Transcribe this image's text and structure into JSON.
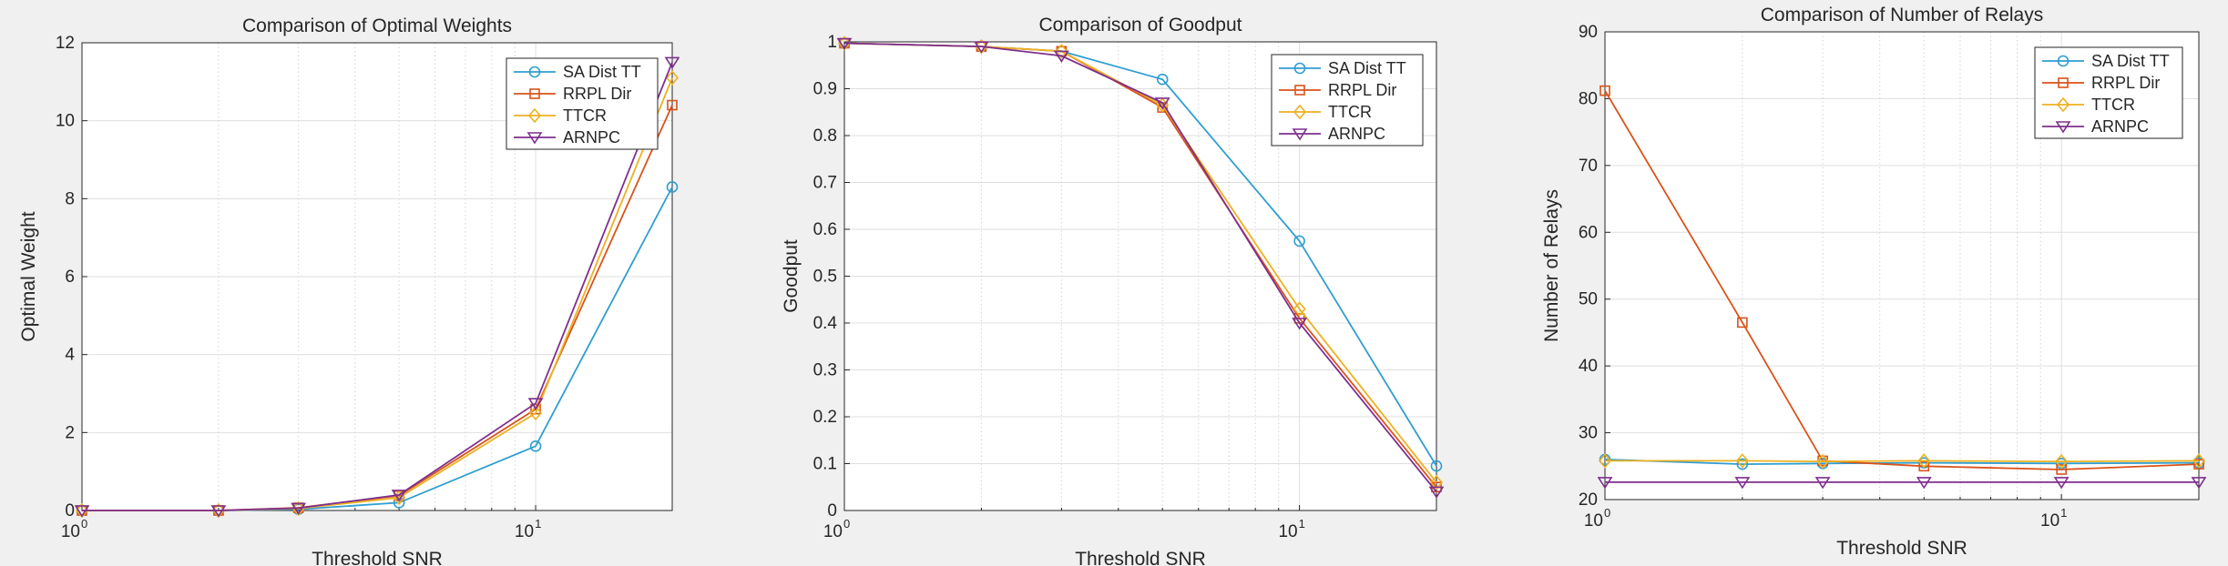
{
  "colors": {
    "series": [
      "#2f9ed0",
      "#d95319",
      "#edb120",
      "#7e2f8e"
    ],
    "grid": "#dfdfdf",
    "axis": "#262626"
  },
  "chart_data": [
    {
      "type": "line",
      "title": "Comparison of Optimal Weights",
      "xlabel": "Threshold SNR",
      "ylabel": "Optimal Weight",
      "xscale": "log",
      "xlim": [
        1,
        20
      ],
      "ylim": [
        0,
        12
      ],
      "yticks": [
        "0",
        "2",
        "4",
        "6",
        "8",
        "10",
        "12"
      ],
      "xtick_base": "10",
      "xtick_exponents": [
        "0",
        "1"
      ],
      "grid": true,
      "legend_position": "top-right",
      "x": [
        1,
        2,
        3,
        5,
        10,
        20
      ],
      "series": [
        {
          "name": "SA Dist TT",
          "marker": "circle",
          "values": [
            0,
            0,
            0.03,
            0.2,
            1.65,
            8.3
          ]
        },
        {
          "name": "RRPL Dir",
          "marker": "square",
          "values": [
            0,
            0,
            0.07,
            0.38,
            2.6,
            10.4
          ]
        },
        {
          "name": "TTCR",
          "marker": "diamond",
          "values": [
            0,
            0,
            0.05,
            0.33,
            2.5,
            11.1
          ]
        },
        {
          "name": "ARNPC",
          "marker": "triangle",
          "values": [
            0,
            0,
            0.06,
            0.4,
            2.75,
            11.5
          ]
        }
      ]
    },
    {
      "type": "line",
      "title": "Comparison of Goodput",
      "xlabel": "Threshold SNR",
      "ylabel": "Goodput",
      "xscale": "log",
      "xlim": [
        1,
        20
      ],
      "ylim": [
        0,
        1
      ],
      "yticks": [
        "0",
        "0.1",
        "0.2",
        "0.3",
        "0.4",
        "0.5",
        "0.6",
        "0.7",
        "0.8",
        "0.9",
        "1"
      ],
      "xtick_base": "10",
      "xtick_exponents": [
        "0",
        "1"
      ],
      "grid": true,
      "legend_position": "top-right",
      "x": [
        1,
        2,
        3,
        5,
        10,
        20
      ],
      "series": [
        {
          "name": "SA Dist TT",
          "marker": "circle",
          "values": [
            0.997,
            0.99,
            0.98,
            0.92,
            0.575,
            0.095
          ]
        },
        {
          "name": "RRPL Dir",
          "marker": "square",
          "values": [
            0.997,
            0.99,
            0.98,
            0.86,
            0.41,
            0.05
          ]
        },
        {
          "name": "TTCR",
          "marker": "diamond",
          "values": [
            0.997,
            0.99,
            0.98,
            0.865,
            0.43,
            0.06
          ]
        },
        {
          "name": "ARNPC",
          "marker": "triangle",
          "values": [
            0.997,
            0.99,
            0.97,
            0.87,
            0.4,
            0.04
          ]
        }
      ]
    },
    {
      "type": "line",
      "title": "Comparison of Number of Relays",
      "xlabel": "Threshold SNR",
      "ylabel": "Number of Relays",
      "xscale": "log",
      "xlim": [
        1,
        20
      ],
      "ylim": [
        20,
        90
      ],
      "yticks": [
        "20",
        "30",
        "40",
        "50",
        "60",
        "70",
        "80",
        "90"
      ],
      "xtick_base": "10",
      "xtick_exponents": [
        "0",
        "1"
      ],
      "grid": true,
      "legend_position": "top-right",
      "x": [
        1,
        2,
        3,
        5,
        10,
        20
      ],
      "series": [
        {
          "name": "SA Dist TT",
          "marker": "circle",
          "values": [
            26,
            25.3,
            25.4,
            25.5,
            25.4,
            25.5
          ]
        },
        {
          "name": "RRPL Dir",
          "marker": "square",
          "values": [
            81.2,
            46.5,
            25.8,
            25,
            24.5,
            25.3
          ]
        },
        {
          "name": "TTCR",
          "marker": "diamond",
          "values": [
            25.8,
            25.8,
            25.7,
            25.8,
            25.7,
            25.8
          ]
        },
        {
          "name": "ARNPC",
          "marker": "triangle",
          "values": [
            22.6,
            22.6,
            22.6,
            22.6,
            22.6,
            22.6
          ]
        }
      ]
    }
  ]
}
